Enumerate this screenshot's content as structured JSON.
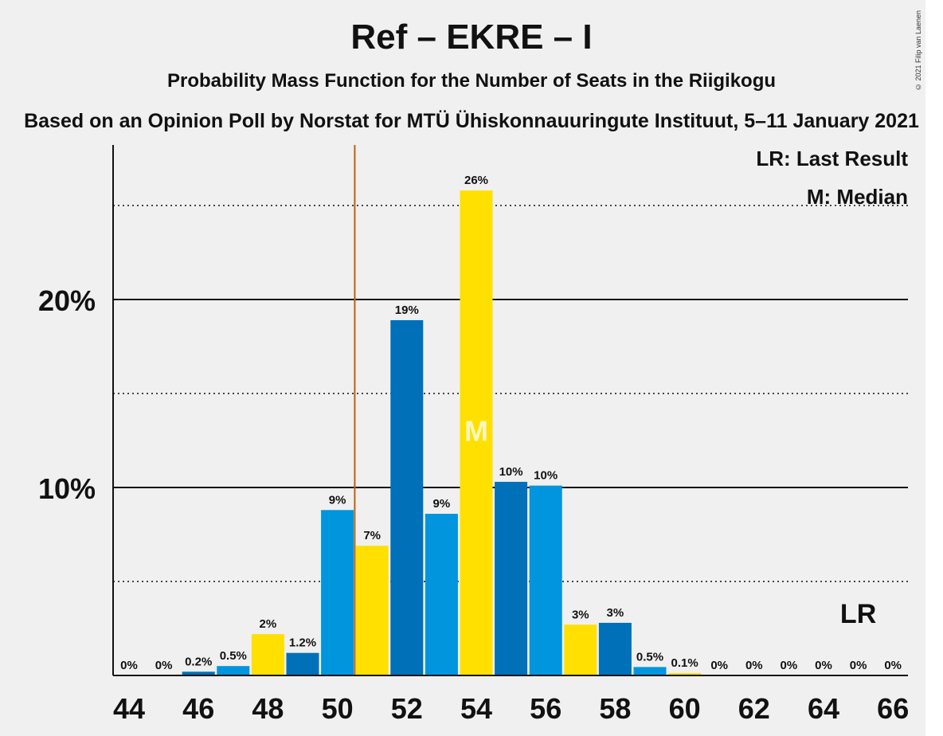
{
  "header": {
    "title": "Ref – EKRE – I",
    "subtitle": "Probability Mass Function for the Number of Seats in the Riigikogu",
    "subtitle2": "Based on an Opinion Poll by Norstat for MTÜ Ühiskonnauuringute Instituut, 5–11 January 2021",
    "copyright": "© 2021 Filip van Laenen"
  },
  "legend": {
    "lr": "LR: Last Result",
    "m": "M: Median"
  },
  "colors": {
    "yellow": "#ffe000",
    "blue_dark": "#0070b8",
    "blue_light": "#0095dd",
    "last_result_line": "#c0600a",
    "background": "#f0f0f0"
  },
  "chart_data": {
    "type": "bar",
    "x": [
      44,
      45,
      46,
      47,
      48,
      49,
      50,
      51,
      52,
      53,
      54,
      55,
      56,
      57,
      58,
      59,
      60,
      61,
      62,
      63,
      64,
      65,
      66
    ],
    "values": [
      0,
      0,
      0.2,
      0.5,
      2.2,
      1.2,
      8.8,
      6.9,
      18.9,
      8.6,
      25.8,
      10.3,
      10.1,
      2.7,
      2.8,
      0.45,
      0.12,
      0,
      0,
      0,
      0,
      0,
      0
    ],
    "labels": [
      "0%",
      "0%",
      "0.2%",
      "0.5%",
      "2%",
      "1.2%",
      "9%",
      "7%",
      "19%",
      "9%",
      "26%",
      "10%",
      "10%",
      "3%",
      "3%",
      "0.5%",
      "0.1%",
      "0%",
      "0%",
      "0%",
      "0%",
      "0%",
      "0%"
    ],
    "bar_colors": [
      "#0070b8",
      "#0095dd",
      "#0070b8",
      "#0095dd",
      "#ffe000",
      "#0070b8",
      "#0095dd",
      "#ffe000",
      "#0070b8",
      "#0095dd",
      "#ffe000",
      "#0070b8",
      "#0095dd",
      "#ffe000",
      "#0070b8",
      "#0095dd",
      "#ffe000",
      "#0070b8",
      "#0095dd",
      "#ffe000",
      "#0070b8",
      "#0095dd",
      "#ffe000"
    ],
    "x_ticks": [
      "44",
      "46",
      "48",
      "50",
      "52",
      "54",
      "56",
      "58",
      "60",
      "62",
      "64",
      "66"
    ],
    "y_ticks": [
      {
        "value": 10,
        "label": "10%"
      },
      {
        "value": 20,
        "label": "20%"
      }
    ],
    "dotted_gridlines": [
      5,
      15,
      25
    ],
    "ylim": [
      0,
      28
    ],
    "median": {
      "x": 54,
      "label": "M"
    },
    "last_result": {
      "x": 50.5,
      "label": "LR",
      "label_x": 65
    }
  }
}
